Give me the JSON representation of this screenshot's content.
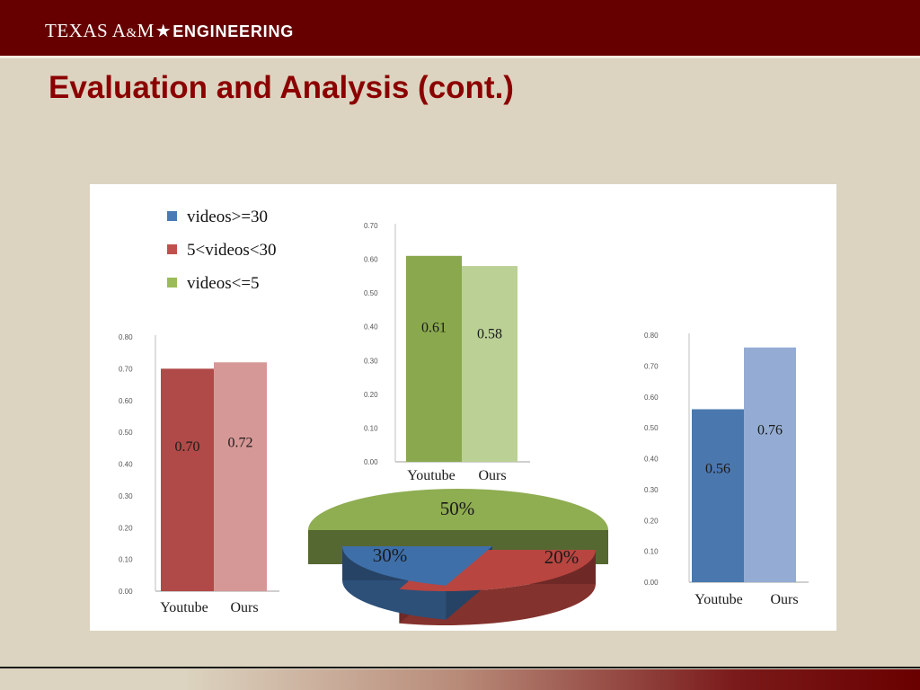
{
  "header": {
    "brand_texas": "TEXAS A",
    "brand_amp": "&",
    "brand_m": "M",
    "brand_star": "★",
    "brand_engineering": "ENGINEERING"
  },
  "slide": {
    "title": "Evaluation and Analysis (cont.)"
  },
  "legend": [
    {
      "label": "videos>=30",
      "color": "#4a7ab5"
    },
    {
      "label": "5<videos<30",
      "color": "#c0504d"
    },
    {
      "label": "videos<=5",
      "color": "#9bbb59"
    }
  ],
  "chart_data": [
    {
      "type": "bar",
      "categories": [
        "Youtube",
        "Ours"
      ],
      "values": [
        0.7,
        0.72
      ],
      "data_labels": [
        "0.70",
        "0.72"
      ],
      "ylim": [
        0,
        0.8
      ],
      "yticks": [
        "0.00",
        "0.10",
        "0.20",
        "0.30",
        "0.40",
        "0.50",
        "0.60",
        "0.70",
        "0.80"
      ],
      "colors": [
        "#b04a48",
        "#d69896"
      ]
    },
    {
      "type": "bar",
      "categories": [
        "Youtube",
        "Ours"
      ],
      "values": [
        0.61,
        0.58
      ],
      "data_labels": [
        "0.61",
        "0.58"
      ],
      "ylim": [
        0,
        0.7
      ],
      "yticks": [
        "0.00",
        "0.10",
        "0.20",
        "0.30",
        "0.40",
        "0.50",
        "0.60",
        "0.70"
      ],
      "colors": [
        "#8aa84e",
        "#bad095"
      ]
    },
    {
      "type": "bar",
      "categories": [
        "Youtube",
        "Ours"
      ],
      "values": [
        0.56,
        0.76
      ],
      "data_labels": [
        "0.56",
        "0.76"
      ],
      "ylim": [
        0,
        0.8
      ],
      "yticks": [
        "0.00",
        "0.10",
        "0.20",
        "0.30",
        "0.40",
        "0.50",
        "0.60",
        "0.70",
        "0.80"
      ],
      "colors": [
        "#4a78ae",
        "#94acd4"
      ]
    },
    {
      "type": "pie",
      "labels": [
        "50%",
        "30%",
        "20%"
      ],
      "values": [
        50,
        30,
        20
      ],
      "colors": [
        "#8fad51",
        "#b8453f",
        "#3f6fa8"
      ]
    }
  ]
}
